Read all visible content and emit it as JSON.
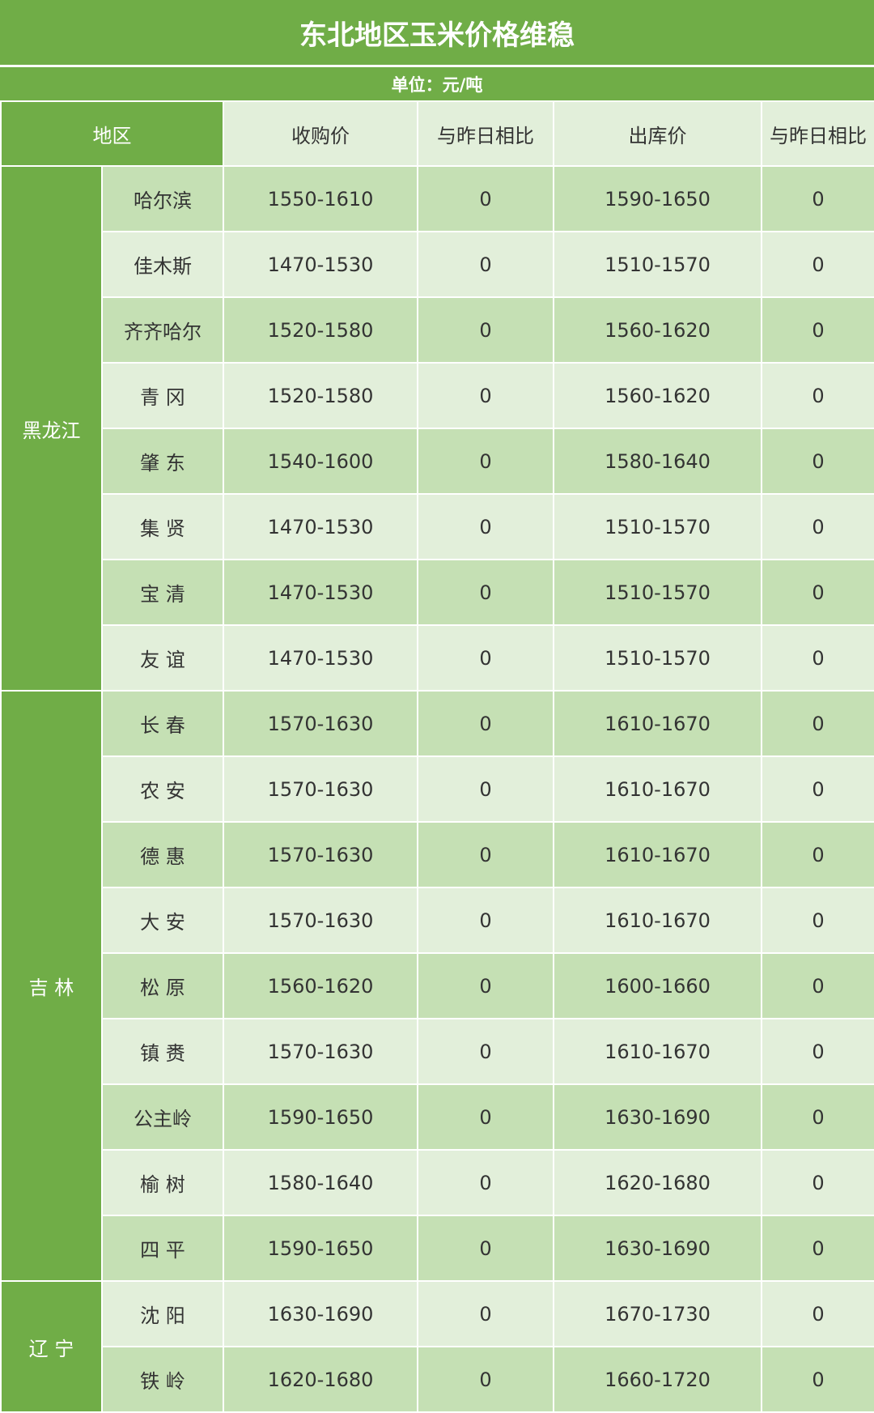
{
  "title": "东北地区玉米价格维稳",
  "unit": "单位：元/吨",
  "headers": {
    "region": "地区",
    "buy": "收购价",
    "buy_change": "与昨日相比",
    "out": "出库价",
    "out_change": "与昨日相比"
  },
  "colors": {
    "header_green": "#70ad47",
    "row_dark": "#c5e0b4",
    "row_light": "#e2efda"
  },
  "provinces": [
    {
      "name": "黑龙江",
      "rows": [
        {
          "city": "哈尔滨",
          "buy": "1550-1610",
          "buy_change": "0",
          "out": "1590-1650",
          "out_change": "0"
        },
        {
          "city": "佳木斯",
          "buy": "1470-1530",
          "buy_change": "0",
          "out": "1510-1570",
          "out_change": "0"
        },
        {
          "city": "齐齐哈尔",
          "buy": "1520-1580",
          "buy_change": "0",
          "out": "1560-1620",
          "out_change": "0"
        },
        {
          "city": "青 冈",
          "buy": "1520-1580",
          "buy_change": "0",
          "out": "1560-1620",
          "out_change": "0"
        },
        {
          "city": "肇 东",
          "buy": "1540-1600",
          "buy_change": "0",
          "out": "1580-1640",
          "out_change": "0"
        },
        {
          "city": "集 贤",
          "buy": "1470-1530",
          "buy_change": "0",
          "out": "1510-1570",
          "out_change": "0"
        },
        {
          "city": "宝 清",
          "buy": "1470-1530",
          "buy_change": "0",
          "out": "1510-1570",
          "out_change": "0"
        },
        {
          "city": "友 谊",
          "buy": "1470-1530",
          "buy_change": "0",
          "out": "1510-1570",
          "out_change": "0"
        }
      ]
    },
    {
      "name": "吉 林",
      "rows": [
        {
          "city": "长 春",
          "buy": "1570-1630",
          "buy_change": "0",
          "out": "1610-1670",
          "out_change": "0"
        },
        {
          "city": "农 安",
          "buy": "1570-1630",
          "buy_change": "0",
          "out": "1610-1670",
          "out_change": "0"
        },
        {
          "city": "德 惠",
          "buy": "1570-1630",
          "buy_change": "0",
          "out": "1610-1670",
          "out_change": "0"
        },
        {
          "city": "大 安",
          "buy": "1570-1630",
          "buy_change": "0",
          "out": "1610-1670",
          "out_change": "0"
        },
        {
          "city": "松 原",
          "buy": "1560-1620",
          "buy_change": "0",
          "out": "1600-1660",
          "out_change": "0"
        },
        {
          "city": "镇 赉",
          "buy": "1570-1630",
          "buy_change": "0",
          "out": "1610-1670",
          "out_change": "0"
        },
        {
          "city": "公主岭",
          "buy": "1590-1650",
          "buy_change": "0",
          "out": "1630-1690",
          "out_change": "0"
        },
        {
          "city": "榆 树",
          "buy": "1580-1640",
          "buy_change": "0",
          "out": "1620-1680",
          "out_change": "0"
        },
        {
          "city": "四 平",
          "buy": "1590-1650",
          "buy_change": "0",
          "out": "1630-1690",
          "out_change": "0"
        }
      ]
    },
    {
      "name": "辽 宁",
      "rows": [
        {
          "city": "沈 阳",
          "buy": "1630-1690",
          "buy_change": "0",
          "out": "1670-1730",
          "out_change": "0"
        },
        {
          "city": "铁 岭",
          "buy": "1620-1680",
          "buy_change": "0",
          "out": "1660-1720",
          "out_change": "0"
        }
      ]
    }
  ]
}
